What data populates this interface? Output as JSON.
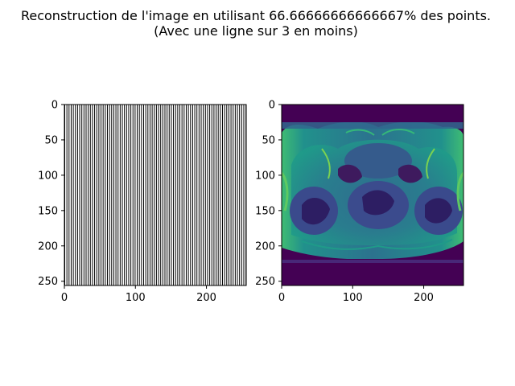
{
  "figure": {
    "title_line1": "Reconstruction de l'image en utilisant 66.66666666666667% des points.",
    "title_line2": "(Avec une ligne sur 3 en moins)"
  },
  "chart_data": [
    {
      "type": "heatmap",
      "name": "sampling-mask",
      "description_values": "binary mask, vertical lines pattern",
      "xlim": [
        0,
        256
      ],
      "ylim": [
        256,
        0
      ],
      "x_ticks": [
        0,
        100,
        200
      ],
      "y_ticks": [
        0,
        50,
        100,
        150,
        200,
        250
      ],
      "pattern": {
        "keep_period": 3,
        "removed_per_period": 1
      },
      "colors": {
        "kept": "#ffffff",
        "removed": "#000000"
      },
      "grid": false
    },
    {
      "type": "heatmap",
      "name": "reconstructed-image",
      "colormap": "viridis",
      "xlim": [
        0,
        256
      ],
      "ylim": [
        256,
        0
      ],
      "x_ticks": [
        0,
        100,
        200
      ],
      "y_ticks": [
        0,
        50,
        100,
        150,
        200,
        250
      ],
      "grid": false
    }
  ]
}
